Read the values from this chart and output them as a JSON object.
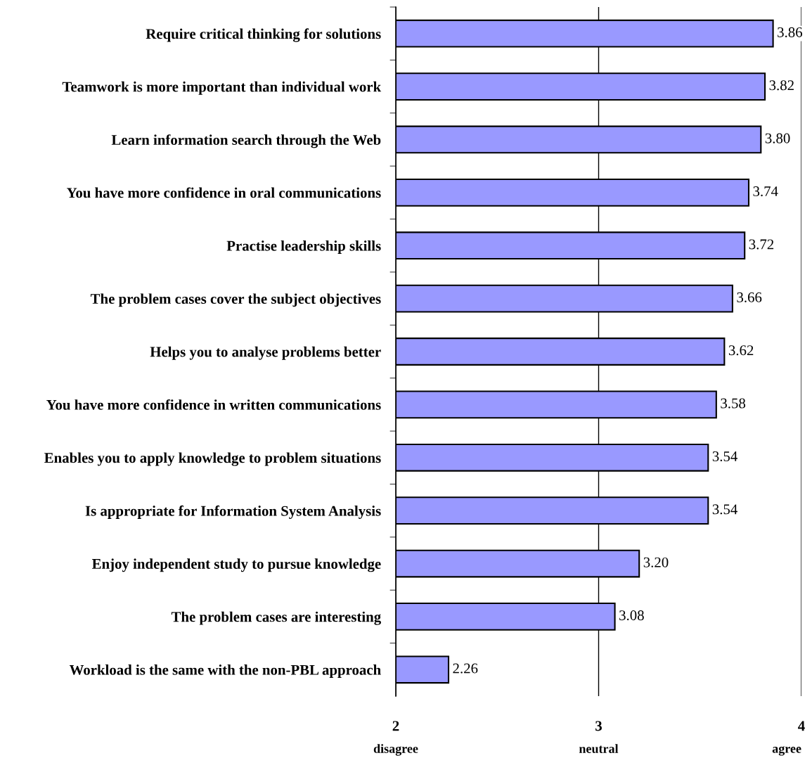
{
  "chart_data": {
    "type": "bar",
    "orientation": "horizontal",
    "categories": [
      "Require critical thinking for solutions",
      "Teamwork is more important than individual work",
      "Learn information search through the Web",
      "You have more confidence in oral communications",
      "Practise leadership skills",
      "The problem cases cover the subject objectives",
      "Helps you to analyse problems better",
      "You have more confidence in written communications",
      "Enables you to apply knowledge to problem situations",
      "Is appropriate for Information System Analysis",
      "Enjoy independent study to pursue knowledge",
      "The problem cases are interesting",
      "Workload is the same with the non-PBL approach"
    ],
    "values": [
      3.86,
      3.82,
      3.8,
      3.74,
      3.72,
      3.66,
      3.62,
      3.58,
      3.54,
      3.54,
      3.2,
      3.08,
      2.26
    ],
    "value_labels": [
      "3.86",
      "3.82",
      "3.80",
      "3.74",
      "3.72",
      "3.66",
      "3.62",
      "3.58",
      "3.54",
      "3.54",
      "3.20",
      "3.08",
      "2.26"
    ],
    "color": "#9999ff",
    "xlim": [
      2,
      4
    ],
    "xticks": [
      2,
      3,
      4
    ],
    "grid": "x",
    "legend": false,
    "annotations": [
      "disagree",
      "neutral",
      "agree"
    ]
  }
}
